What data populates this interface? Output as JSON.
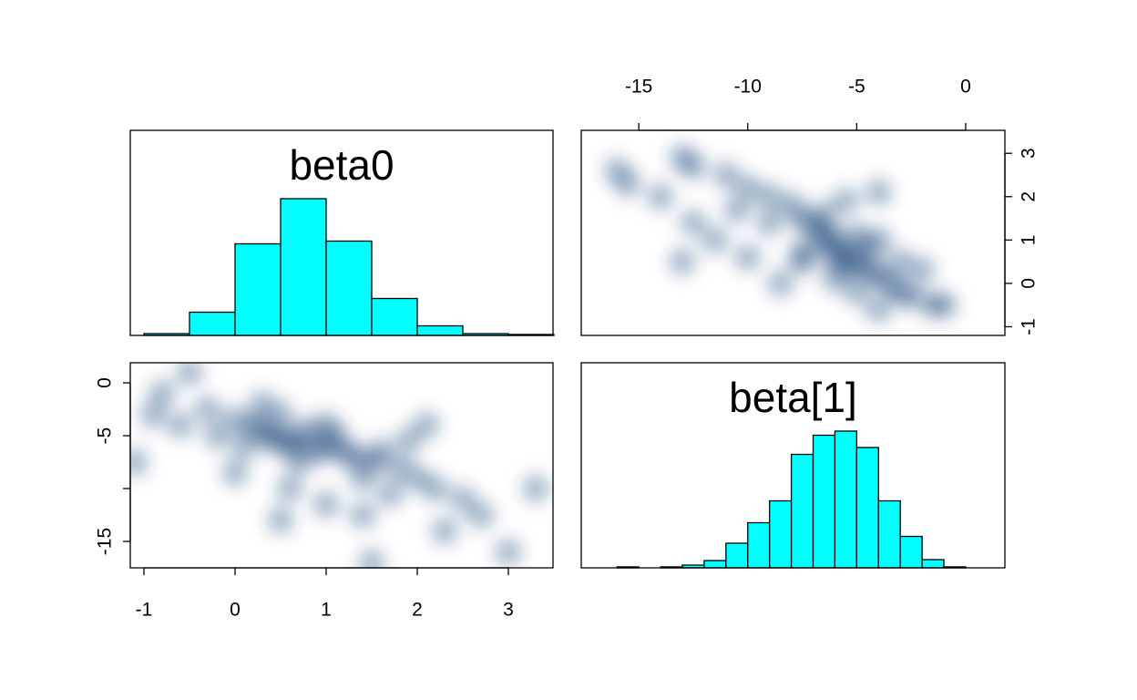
{
  "chart_data": [
    {
      "type": "histogram",
      "title": "beta0",
      "bins": [
        -1,
        -0.5,
        0,
        0.5,
        1,
        1.5,
        2,
        2.5,
        3,
        3.5
      ],
      "values": [
        0.013,
        0.17,
        0.67,
        1.0,
        0.69,
        0.27,
        0.07,
        0.013,
        0.007
      ],
      "xlim": [
        -1.15,
        3.49
      ],
      "ylim": [
        0,
        1.5
      ],
      "color": "#00ffff"
    },
    {
      "type": "scatter",
      "x_axis_side": "top",
      "y_axis_side": "right",
      "x": [
        -5,
        -5.5,
        -4.5,
        -6,
        -7,
        -6.5,
        -4,
        -6,
        -5,
        -5.5,
        -7.5,
        -4.5,
        -6.5,
        -3.5,
        -3,
        -4,
        -6.5,
        -8,
        -6,
        -5,
        -7.5,
        -9,
        -9,
        -10,
        -10.5,
        -11,
        -2,
        -2.5,
        -4,
        -1,
        -1.5,
        -7.5,
        -8.5,
        -10,
        -11.5,
        -12.5,
        -12.5,
        -13,
        -14,
        -15.5,
        -16,
        -13,
        -4,
        -5.5,
        -3
      ],
      "y": [
        0.5,
        0.7,
        0.3,
        1.0,
        1.3,
        0.9,
        0.2,
        0.6,
        1.1,
        0.4,
        1.5,
        0.8,
        1.2,
        0,
        0.5,
        1.0,
        1.6,
        1.8,
        0.1,
        -0.2,
        0.7,
        1.4,
        2.0,
        2.2,
        1.7,
        2.5,
        0.3,
        -0.3,
        -0.6,
        -0.5,
        -0.5,
        0.5,
        0.0,
        0.6,
        1.0,
        1.4,
        2.7,
        2.9,
        2.0,
        2.3,
        2.6,
        0.5,
        2.1,
        1.9,
        -0.2
      ],
      "xlim": [
        -17.64,
        1.8
      ],
      "ylim": [
        -1.2,
        3.53
      ],
      "xticks": [
        -15,
        -10,
        -5,
        0
      ],
      "yticks": [
        -1,
        0,
        1,
        2,
        3
      ],
      "color": "#08306b"
    },
    {
      "type": "scatter",
      "x_axis_side": "bottom",
      "y_axis_side": "left",
      "x": [
        0.5,
        0.7,
        0.3,
        1.0,
        1.3,
        0.9,
        0.2,
        0.6,
        1.1,
        0.4,
        1.5,
        0.8,
        1.2,
        0,
        0.5,
        1.0,
        1.6,
        1.8,
        0.1,
        -0.2,
        0.7,
        1.4,
        2.0,
        2.2,
        1.7,
        2.5,
        0.3,
        -0.3,
        -0.6,
        -0.8,
        -0.5,
        -1.1,
        0.0,
        0.6,
        1.0,
        1.4,
        2.7,
        3.3,
        2.3,
        3.0,
        1.5,
        0.5,
        2.1,
        1.9,
        -0.9
      ],
      "y": [
        -5,
        -5.5,
        -4.5,
        -6,
        -7,
        -6.5,
        -4,
        -6,
        -5,
        -5.5,
        -7.5,
        -4.5,
        -6.5,
        -3.5,
        -3,
        -4,
        -6.5,
        -8,
        -6,
        -5,
        -7.5,
        -9,
        -9,
        -10,
        -10.5,
        -11,
        -2,
        -2.5,
        -4,
        -1,
        1,
        -7.5,
        -8.5,
        -10,
        -11.5,
        -12.5,
        -12.5,
        -10,
        -14,
        -16,
        -17,
        -13,
        -4,
        -5.5,
        -3
      ],
      "xlim": [
        -1.15,
        3.49
      ],
      "ylim": [
        -17.5,
        1.9
      ],
      "xticks": [
        -1,
        0,
        1,
        2,
        3
      ],
      "yticks": [
        0,
        -5,
        {
          "value": -10,
          "label": null
        },
        -15
      ],
      "color": "#08306b"
    },
    {
      "type": "histogram",
      "title": "beta[1]",
      "bins": [
        -16,
        -15,
        -14,
        -13,
        -12,
        -11,
        -10,
        -9,
        -8,
        -7,
        -6,
        -5,
        -4,
        -3,
        -2,
        -1,
        0
      ],
      "values": [
        0.007,
        0,
        0.007,
        0.02,
        0.053,
        0.18,
        0.33,
        0.49,
        0.83,
        0.97,
        1.0,
        0.88,
        0.49,
        0.23,
        0.06,
        0.007
      ],
      "xlim": [
        -17.64,
        1.8
      ],
      "ylim": [
        0,
        1.5
      ],
      "color": "#00ffff"
    }
  ]
}
